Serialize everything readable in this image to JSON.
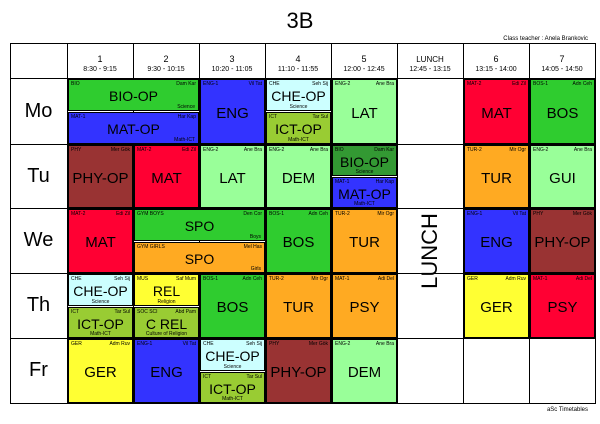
{
  "title": "3B",
  "class_teacher": "Class teacher : Anela Brankovic",
  "footer": "aSc Timetables",
  "colors": {
    "green": "#2fcc2f",
    "blue": "#3333ff",
    "light_green": "#99ff99",
    "cyan": "#ccffff",
    "olive": "#99cc33",
    "red": "#ff0033",
    "maroon": "#993333",
    "orange": "#ffaa22",
    "yellow": "#ffff33",
    "dark_green": "#339933",
    "light_blue": "#5566ff"
  },
  "periods": [
    {
      "num": "1",
      "time": "8:30 - 9:15"
    },
    {
      "num": "2",
      "time": "9:30 - 10:15"
    },
    {
      "num": "3",
      "time": "10:20 - 11:05"
    },
    {
      "num": "4",
      "time": "11:10 - 11:55"
    },
    {
      "num": "5",
      "time": "12:00 - 12:45"
    },
    {
      "num": "LUNCH",
      "time": "12:45 - 13:15"
    },
    {
      "num": "6",
      "time": "13:15 - 14:00"
    },
    {
      "num": "7",
      "time": "14:05 - 14:50"
    }
  ],
  "lunch_label": "LUNCH",
  "days": [
    "Mo",
    "Tu",
    "We",
    "Th",
    "Fr"
  ],
  "lessons": [
    {
      "d": 0,
      "c": 0,
      "span": 2,
      "f": 0,
      "h": 0.5,
      "code": "BIO",
      "teacher": "Dam Kar",
      "subject": "BIO-OP",
      "note": "Science",
      "color": "green"
    },
    {
      "d": 0,
      "c": 0,
      "span": 2,
      "f": 0.5,
      "h": 0.5,
      "code": "MAT-1",
      "teacher": "Har Kap",
      "subject": "MAT-OP",
      "note": "Math-ICT",
      "color": "blue"
    },
    {
      "d": 0,
      "c": 2,
      "span": 1,
      "f": 0,
      "h": 1,
      "code": "ENG-1",
      "teacher": "Vil Tat",
      "subject": "ENG",
      "note": "",
      "color": "blue"
    },
    {
      "d": 0,
      "c": 3,
      "span": 1,
      "f": 0,
      "h": 0.5,
      "code": "CHE",
      "teacher": "Seh Sij",
      "subject": "CHE-OP",
      "note": "Science",
      "color": "cyan"
    },
    {
      "d": 0,
      "c": 3,
      "span": 1,
      "f": 0.5,
      "h": 0.5,
      "code": "ICT",
      "teacher": "Tar Sul",
      "subject": "ICT-OP",
      "note": "Math-ICT",
      "color": "olive"
    },
    {
      "d": 0,
      "c": 4,
      "span": 1,
      "f": 0,
      "h": 1,
      "code": "ENG-2",
      "teacher": "Ane Bra",
      "subject": "LAT",
      "note": "",
      "color": "light_green"
    },
    {
      "d": 0,
      "c": 6,
      "span": 1,
      "f": 0,
      "h": 1,
      "code": "MAT-2",
      "teacher": "Edi Zil",
      "subject": "MAT",
      "note": "",
      "color": "red"
    },
    {
      "d": 0,
      "c": 7,
      "span": 1,
      "f": 0,
      "h": 1,
      "code": "BOS-1",
      "teacher": "Adn Ceh",
      "subject": "BOS",
      "note": "",
      "color": "green"
    },
    {
      "d": 1,
      "c": 0,
      "span": 1,
      "f": 0,
      "h": 1,
      "code": "PHY",
      "teacher": "Mer Gök",
      "subject": "PHY-OP",
      "note": "",
      "color": "maroon"
    },
    {
      "d": 1,
      "c": 1,
      "span": 1,
      "f": 0,
      "h": 1,
      "code": "MAT-2",
      "teacher": "Edi Zil",
      "subject": "MAT",
      "note": "",
      "color": "red"
    },
    {
      "d": 1,
      "c": 2,
      "span": 1,
      "f": 0,
      "h": 1,
      "code": "ENG-2",
      "teacher": "Ane Bra",
      "subject": "LAT",
      "note": "",
      "color": "light_green"
    },
    {
      "d": 1,
      "c": 3,
      "span": 1,
      "f": 0,
      "h": 1,
      "code": "ENG-2",
      "teacher": "Ane Bra",
      "subject": "DEM",
      "note": "",
      "color": "light_green"
    },
    {
      "d": 1,
      "c": 4,
      "span": 1,
      "f": 0,
      "h": 0.5,
      "code": "BIO",
      "teacher": "Dam Kar",
      "subject": "BIO-OP",
      "note": "Science",
      "color": "dark_green"
    },
    {
      "d": 1,
      "c": 4,
      "span": 1,
      "f": 0.5,
      "h": 0.5,
      "code": "MAT-1",
      "teacher": "Har Kap",
      "subject": "MAT-OP",
      "note": "Math-ICT",
      "color": "blue"
    },
    {
      "d": 1,
      "c": 6,
      "span": 1,
      "f": 0,
      "h": 1,
      "code": "TUR-2",
      "teacher": "Mir Ogr",
      "subject": "TUR",
      "note": "",
      "color": "orange"
    },
    {
      "d": 1,
      "c": 7,
      "span": 1,
      "f": 0,
      "h": 1,
      "code": "ENG-2",
      "teacher": "Ane Bra",
      "subject": "GUI",
      "note": "",
      "color": "light_green"
    },
    {
      "d": 2,
      "c": 0,
      "span": 1,
      "f": 0,
      "h": 1,
      "code": "MAT-2",
      "teacher": "Edi Zil",
      "subject": "MAT",
      "note": "",
      "color": "red"
    },
    {
      "d": 2,
      "c": 1,
      "span": 2,
      "f": 0,
      "h": 0.5,
      "code": "GYM BOYS",
      "teacher": "Den Cor",
      "subject": "SPO",
      "note": "Boys",
      "color": "green"
    },
    {
      "d": 2,
      "c": 1,
      "span": 2,
      "f": 0.5,
      "h": 0.5,
      "code": "GYM GIRLS",
      "teacher": "Mel Has",
      "subject": "SPO",
      "note": "Girls",
      "color": "orange"
    },
    {
      "d": 2,
      "c": 3,
      "span": 1,
      "f": 0,
      "h": 1,
      "code": "BOS-1",
      "teacher": "Adn Ceh",
      "subject": "BOS",
      "note": "",
      "color": "green"
    },
    {
      "d": 2,
      "c": 4,
      "span": 1,
      "f": 0,
      "h": 1,
      "code": "TUR-2",
      "teacher": "Mir Ogr",
      "subject": "TUR",
      "note": "",
      "color": "orange"
    },
    {
      "d": 2,
      "c": 6,
      "span": 1,
      "f": 0,
      "h": 1,
      "code": "ENG-1",
      "teacher": "Vil Tat",
      "subject": "ENG",
      "note": "",
      "color": "blue"
    },
    {
      "d": 2,
      "c": 7,
      "span": 1,
      "f": 0,
      "h": 1,
      "code": "PHY",
      "teacher": "Mer Gök",
      "subject": "PHY-OP",
      "note": "",
      "color": "maroon"
    },
    {
      "d": 3,
      "c": 0,
      "span": 1,
      "f": 0,
      "h": 0.5,
      "code": "CHE",
      "teacher": "Seh Sij",
      "subject": "CHE-OP",
      "note": "Science",
      "color": "cyan"
    },
    {
      "d": 3,
      "c": 0,
      "span": 1,
      "f": 0.5,
      "h": 0.5,
      "code": "ICT",
      "teacher": "Tar Sul",
      "subject": "ICT-OP",
      "note": "Math-ICT",
      "color": "olive"
    },
    {
      "d": 3,
      "c": 1,
      "span": 1,
      "f": 0,
      "h": 0.5,
      "code": "MUS",
      "teacher": "Saf Mum",
      "subject": "REL",
      "note": "Religion",
      "color": "yellow"
    },
    {
      "d": 3,
      "c": 1,
      "span": 1,
      "f": 0.5,
      "h": 0.5,
      "code": "SOC SCI",
      "teacher": "Abd Pam",
      "subject": "C REL",
      "note": "Culture of Religion",
      "color": "olive"
    },
    {
      "d": 3,
      "c": 2,
      "span": 1,
      "f": 0,
      "h": 1,
      "code": "BOS-1",
      "teacher": "Adn Ceh",
      "subject": "BOS",
      "note": "",
      "color": "green"
    },
    {
      "d": 3,
      "c": 3,
      "span": 1,
      "f": 0,
      "h": 1,
      "code": "TUR-2",
      "teacher": "Mir Ogr",
      "subject": "TUR",
      "note": "",
      "color": "orange"
    },
    {
      "d": 3,
      "c": 4,
      "span": 1,
      "f": 0,
      "h": 1,
      "code": "MAT-1",
      "teacher": "Adi Del",
      "subject": "PSY",
      "note": "",
      "color": "orange"
    },
    {
      "d": 3,
      "c": 6,
      "span": 1,
      "f": 0,
      "h": 1,
      "code": "GER",
      "teacher": "Adm Ruv",
      "subject": "GER",
      "note": "",
      "color": "yellow"
    },
    {
      "d": 3,
      "c": 7,
      "span": 1,
      "f": 0,
      "h": 1,
      "code": "MAT-1",
      "teacher": "Adi Del",
      "subject": "PSY",
      "note": "",
      "color": "red"
    },
    {
      "d": 4,
      "c": 0,
      "span": 1,
      "f": 0,
      "h": 1,
      "code": "GER",
      "teacher": "Adm Ruv",
      "subject": "GER",
      "note": "",
      "color": "yellow"
    },
    {
      "d": 4,
      "c": 1,
      "span": 1,
      "f": 0,
      "h": 1,
      "code": "ENG-1",
      "teacher": "Vil Tat",
      "subject": "ENG",
      "note": "",
      "color": "blue"
    },
    {
      "d": 4,
      "c": 2,
      "span": 1,
      "f": 0,
      "h": 0.5,
      "code": "CHE",
      "teacher": "Seh Sij",
      "subject": "CHE-OP",
      "note": "Science",
      "color": "cyan"
    },
    {
      "d": 4,
      "c": 2,
      "span": 1,
      "f": 0.5,
      "h": 0.5,
      "code": "ICT",
      "teacher": "Tar Sul",
      "subject": "ICT-OP",
      "note": "Math-ICT",
      "color": "olive"
    },
    {
      "d": 4,
      "c": 3,
      "span": 1,
      "f": 0,
      "h": 1,
      "code": "PHY",
      "teacher": "Mer Gök",
      "subject": "PHY-OP",
      "note": "",
      "color": "maroon"
    },
    {
      "d": 4,
      "c": 4,
      "span": 1,
      "f": 0,
      "h": 1,
      "code": "ENG-2",
      "teacher": "Ane Bra",
      "subject": "DEM",
      "note": "",
      "color": "light_green"
    }
  ]
}
